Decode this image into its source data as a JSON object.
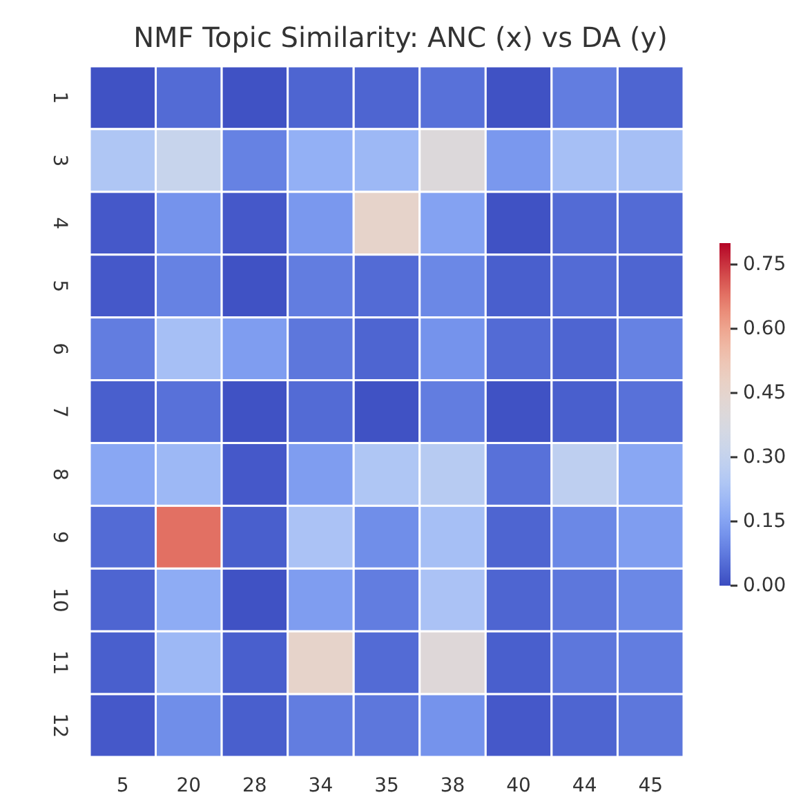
{
  "chart_data": {
    "type": "heatmap",
    "title": "NMF Topic Similarity: ANC (x) vs DA (y)",
    "categories": [
      "5",
      "20",
      "28",
      "34",
      "35",
      "38",
      "40",
      "44",
      "45"
    ],
    "y_categories": [
      "1",
      "3",
      "4",
      "5",
      "6",
      "7",
      "8",
      "9",
      "10",
      "11",
      "12"
    ],
    "cells": [
      [
        0.01,
        0.05,
        0.01,
        0.04,
        0.04,
        0.06,
        0.01,
        0.08,
        0.04
      ],
      [
        0.24,
        0.31,
        0.09,
        0.18,
        0.2,
        0.4,
        0.13,
        0.22,
        0.22
      ],
      [
        0.02,
        0.12,
        0.02,
        0.13,
        0.46,
        0.15,
        0.01,
        0.05,
        0.05
      ],
      [
        0.02,
        0.09,
        0.01,
        0.08,
        0.05,
        0.1,
        0.03,
        0.05,
        0.04
      ],
      [
        0.08,
        0.22,
        0.14,
        0.07,
        0.04,
        0.12,
        0.05,
        0.04,
        0.09
      ],
      [
        0.03,
        0.06,
        0.01,
        0.05,
        0.01,
        0.08,
        0.01,
        0.03,
        0.06
      ],
      [
        0.16,
        0.2,
        0.02,
        0.14,
        0.24,
        0.26,
        0.06,
        0.28,
        0.16
      ],
      [
        0.05,
        0.68,
        0.03,
        0.23,
        0.11,
        0.22,
        0.04,
        0.1,
        0.14
      ],
      [
        0.04,
        0.17,
        0.01,
        0.14,
        0.08,
        0.23,
        0.04,
        0.07,
        0.1
      ],
      [
        0.03,
        0.2,
        0.03,
        0.46,
        0.05,
        0.41,
        0.03,
        0.07,
        0.08
      ],
      [
        0.02,
        0.11,
        0.03,
        0.08,
        0.07,
        0.12,
        0.02,
        0.04,
        0.07
      ]
    ],
    "clim": [
      0,
      0.8
    ],
    "cticks": [
      {
        "value": 0,
        "label": "0.00"
      },
      {
        "value": 0.15,
        "label": "0.15"
      },
      {
        "value": 0.3,
        "label": "0.30"
      },
      {
        "value": 0.45,
        "label": "0.45"
      },
      {
        "value": 0.6,
        "label": "0.60"
      },
      {
        "value": 0.75,
        "label": "0.75"
      }
    ]
  }
}
